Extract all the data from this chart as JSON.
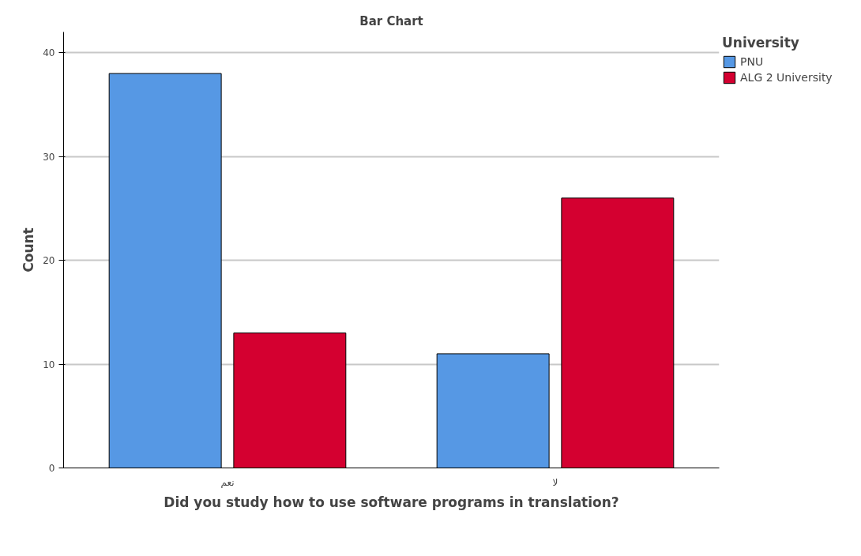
{
  "chart_data": {
    "type": "bar",
    "title": "Bar Chart",
    "xlabel": "Did you study how to use software programs in translation?",
    "ylabel": "Count",
    "legend_title": "University",
    "categories": [
      "نعم",
      "لا"
    ],
    "series": [
      {
        "name": "PNU",
        "color": "#5698e4",
        "values": [
          38,
          11
        ]
      },
      {
        "name": "ALG 2 University",
        "color": "#d40030",
        "values": [
          13,
          26
        ]
      }
    ],
    "ylim": [
      0,
      42
    ],
    "yticks": [
      0,
      10,
      20,
      30,
      40
    ],
    "grid": "y",
    "legend": "top right"
  }
}
